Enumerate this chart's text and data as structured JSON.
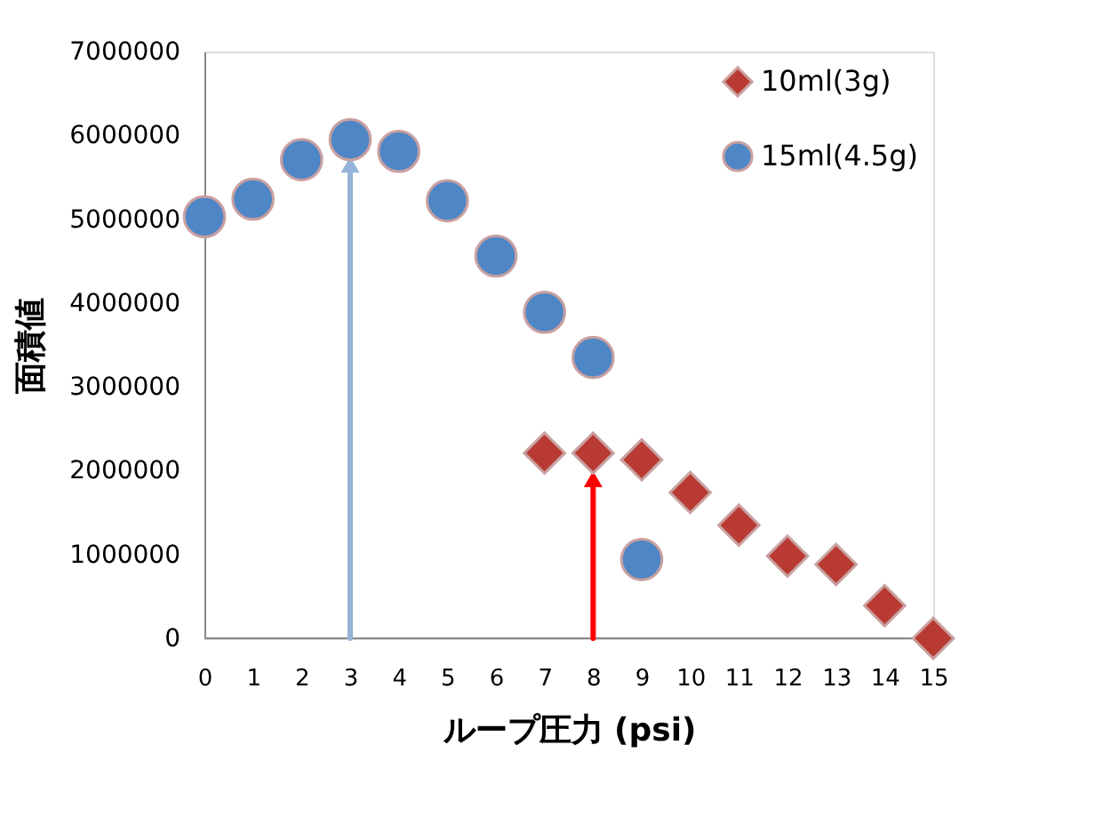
{
  "chart_data": {
    "type": "scatter",
    "xlabel": "ループ圧力 (psi)",
    "ylabel": "面積値",
    "series": [
      {
        "name": "10ml(3g)",
        "color": "#b83a32",
        "marker": "diamond",
        "x": [
          7,
          8,
          9,
          10,
          11,
          12,
          13,
          14,
          15
        ],
        "values": [
          2210000,
          2210000,
          2130000,
          1740000,
          1350000,
          980000,
          880000,
          390000,
          0
        ]
      },
      {
        "name": "15ml(4.5g)",
        "color": "#4f86c6",
        "marker": "circle",
        "x": [
          0,
          1,
          2,
          3,
          4,
          5,
          6,
          7,
          8,
          9
        ],
        "values": [
          5030000,
          5240000,
          5710000,
          5950000,
          5810000,
          5220000,
          4560000,
          3890000,
          3350000,
          940000
        ]
      },
      {
        "type": "line",
        "color": "#95b3d7",
        "marker": "triangle",
        "x": [
          3,
          3
        ],
        "values": [
          0,
          5650000
        ]
      },
      {
        "type": "line",
        "color": "#ff0000",
        "marker": "triangle",
        "x": [
          8,
          8
        ],
        "values": [
          0,
          1900000
        ]
      }
    ],
    "xlim": [
      0,
      15
    ],
    "xticks": [
      0,
      1,
      2,
      3,
      4,
      5,
      6,
      7,
      8,
      9,
      10,
      11,
      12,
      13,
      14,
      15
    ],
    "ylim": [
      0,
      7000000
    ],
    "yticks": [
      0,
      1000000,
      2000000,
      3000000,
      4000000,
      5000000,
      6000000,
      7000000
    ],
    "grid": false,
    "legend": "top right"
  }
}
